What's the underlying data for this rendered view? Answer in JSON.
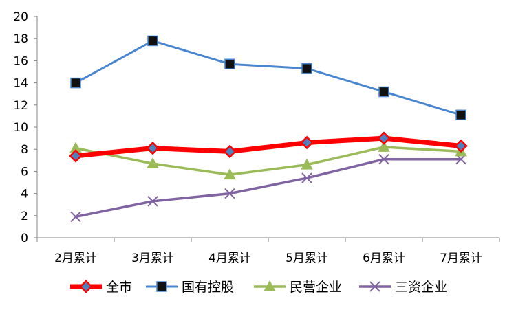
{
  "chart_data": {
    "type": "line",
    "categories": [
      "2月累计",
      "3月累计",
      "4月累计",
      "5月累计",
      "6月累计",
      "7月累计"
    ],
    "ylim": [
      0,
      20
    ],
    "yticks": [
      0,
      2,
      4,
      6,
      8,
      10,
      12,
      14,
      16,
      18,
      20
    ],
    "grid": false,
    "legend": "bottom",
    "series": [
      {
        "name": "全市",
        "values": [
          7.4,
          8.1,
          7.8,
          8.6,
          9.0,
          8.3
        ],
        "color": "#ff0000",
        "marker": "diamond",
        "marker_fill": "#4f81bd"
      },
      {
        "name": "国有控股",
        "values": [
          14.0,
          17.8,
          15.7,
          15.3,
          13.2,
          11.1
        ],
        "color": "#4a86d0",
        "marker": "square",
        "marker_fill": "#111111"
      },
      {
        "name": "民营企业",
        "values": [
          8.1,
          6.7,
          5.7,
          6.6,
          8.2,
          7.8
        ],
        "color": "#9bbb59",
        "marker": "triangle",
        "marker_fill": "#9bbb59"
      },
      {
        "name": "三资企业",
        "values": [
          1.9,
          3.3,
          4.0,
          5.4,
          7.1,
          7.1
        ],
        "color": "#8064a2",
        "marker": "x",
        "marker_fill": "#8064a2"
      }
    ]
  }
}
